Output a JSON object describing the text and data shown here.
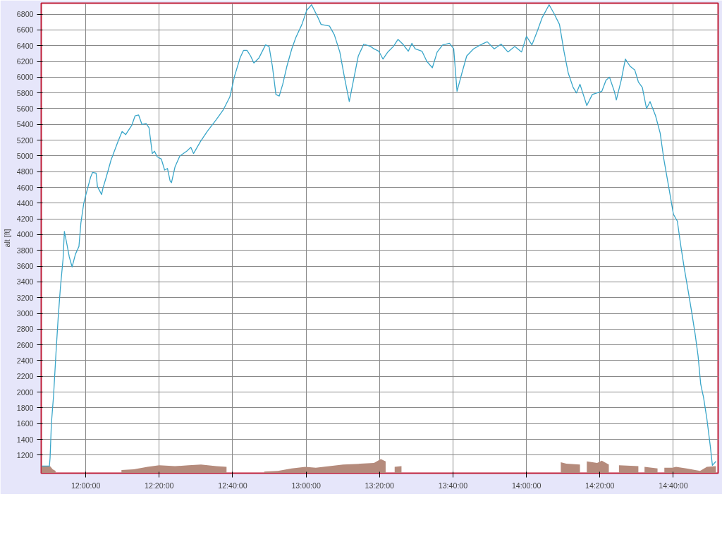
{
  "chart_data": {
    "type": "line",
    "ylabel": "alt [ft]",
    "xlim": [
      11.798,
      14.87
    ],
    "ylim": [
      970,
      6940
    ],
    "xticks": [
      {
        "value": 12,
        "label": "12:00:00"
      },
      {
        "value": 12.3333,
        "label": "12:20:00"
      },
      {
        "value": 12.6667,
        "label": "12:40:00"
      },
      {
        "value": 13,
        "label": "13:00:00"
      },
      {
        "value": 13.3333,
        "label": "13:20:00"
      },
      {
        "value": 13.6667,
        "label": "13:40:00"
      },
      {
        "value": 14,
        "label": "14:00:00"
      },
      {
        "value": 14.3333,
        "label": "14:20:00"
      },
      {
        "value": 14.6667,
        "label": "14:40:00"
      }
    ],
    "yticks": [
      1200,
      1400,
      1600,
      1800,
      2000,
      2200,
      2400,
      2600,
      2800,
      3000,
      3200,
      3400,
      3600,
      3800,
      4000,
      4200,
      4400,
      4600,
      4800,
      5000,
      5200,
      5400,
      5600,
      5800,
      6000,
      6200,
      6400,
      6600,
      6800
    ],
    "grid": true,
    "series": [
      {
        "type": "area",
        "color": "#b58b7c",
        "x": [
          11.798,
          11.838,
          11.85,
          11.863,
          11.875,
          11.969,
          12.156,
          12.162,
          12.218,
          12.28,
          12.333,
          12.405,
          12.467,
          12.523,
          12.592,
          12.639,
          12.642,
          12.763,
          12.81,
          12.872,
          12.935,
          12.997,
          13.044,
          13.106,
          13.168,
          13.246,
          13.308,
          13.339,
          13.361,
          13.371,
          13.396,
          13.402,
          13.433,
          13.439,
          14.15,
          14.156,
          14.181,
          14.243,
          14.252,
          14.268,
          14.274,
          14.321,
          14.342,
          14.374,
          14.383,
          14.414,
          14.42,
          14.508,
          14.526,
          14.536,
          14.595,
          14.601,
          14.623,
          14.626,
          14.663,
          14.679,
          14.726,
          14.788,
          14.819,
          14.86
        ],
        "values": [
          1060,
          1060,
          1020,
          1000,
          null,
          null,
          null,
          1010,
          1020,
          1050,
          1070,
          1060,
          1070,
          1080,
          1060,
          1050,
          null,
          null,
          990,
          1000,
          1030,
          1050,
          1040,
          1060,
          1080,
          1090,
          1100,
          1150,
          1120,
          null,
          null,
          1050,
          1060,
          null,
          null,
          1110,
          1090,
          1080,
          null,
          null,
          1120,
          1100,
          1130,
          1080,
          null,
          null,
          1070,
          1060,
          null,
          1050,
          1030,
          null,
          null,
          1040,
          1040,
          1050,
          1030,
          1000,
          1050,
          1060
        ]
      },
      {
        "color": "#3aa6c9",
        "x": [
          11.798,
          11.835,
          11.838,
          11.844,
          11.854,
          11.866,
          11.875,
          11.885,
          11.897,
          11.903,
          11.913,
          11.925,
          11.938,
          11.953,
          11.969,
          11.978,
          11.991,
          12.0,
          12.022,
          12.031,
          12.047,
          12.053,
          12.072,
          12.078,
          12.093,
          12.115,
          12.146,
          12.165,
          12.181,
          12.209,
          12.224,
          12.24,
          12.255,
          12.274,
          12.287,
          12.302,
          12.312,
          12.324,
          12.343,
          12.358,
          12.371,
          12.383,
          12.389,
          12.405,
          12.427,
          12.458,
          12.477,
          12.489,
          12.52,
          12.551,
          12.592,
          12.623,
          12.654,
          12.676,
          12.701,
          12.716,
          12.732,
          12.748,
          12.763,
          12.785,
          12.816,
          12.832,
          12.847,
          12.863,
          12.878,
          12.894,
          12.913,
          12.935,
          12.953,
          12.981,
          13.003,
          13.025,
          13.05,
          13.068,
          13.106,
          13.128,
          13.153,
          13.174,
          13.196,
          13.215,
          13.237,
          13.262,
          13.293,
          13.308,
          13.33,
          13.349,
          13.371,
          13.396,
          13.417,
          13.439,
          13.464,
          13.48,
          13.495,
          13.526,
          13.548,
          13.573,
          13.595,
          13.62,
          13.651,
          13.67,
          13.685,
          13.707,
          13.729,
          13.76,
          13.791,
          13.822,
          13.854,
          13.885,
          13.916,
          13.947,
          13.978,
          14.0,
          14.025,
          14.05,
          14.072,
          14.103,
          14.125,
          14.15,
          14.171,
          14.19,
          14.212,
          14.227,
          14.243,
          14.258,
          14.274,
          14.299,
          14.321,
          14.342,
          14.361,
          14.377,
          14.399,
          14.408,
          14.43,
          14.449,
          14.47,
          14.492,
          14.508,
          14.526,
          14.545,
          14.561,
          14.586,
          14.607,
          14.623,
          14.648,
          14.667,
          14.685,
          14.701,
          14.716,
          14.735,
          14.751,
          14.766,
          14.779,
          14.791,
          14.804,
          14.819,
          14.835,
          14.844,
          14.86
        ],
        "values": [
          1060,
          1060,
          1160,
          1600,
          1960,
          2550,
          2950,
          3330,
          3690,
          4040,
          3900,
          3720,
          3590,
          3750,
          3850,
          4150,
          4400,
          4500,
          4730,
          4790,
          4780,
          4610,
          4510,
          4590,
          4730,
          4950,
          5180,
          5310,
          5270,
          5390,
          5510,
          5520,
          5400,
          5410,
          5360,
          5030,
          5060,
          4990,
          4960,
          4820,
          4840,
          4680,
          4660,
          4860,
          5000,
          5060,
          5110,
          5030,
          5180,
          5310,
          5460,
          5580,
          5750,
          6020,
          6250,
          6340,
          6340,
          6270,
          6180,
          6240,
          6410,
          6390,
          6140,
          5780,
          5760,
          5910,
          6140,
          6360,
          6500,
          6670,
          6850,
          6920,
          6780,
          6670,
          6650,
          6540,
          6320,
          6000,
          5690,
          5960,
          6270,
          6420,
          6390,
          6360,
          6330,
          6230,
          6320,
          6390,
          6480,
          6420,
          6330,
          6430,
          6360,
          6330,
          6200,
          6120,
          6320,
          6410,
          6430,
          6360,
          5820,
          6050,
          6270,
          6360,
          6410,
          6450,
          6360,
          6420,
          6320,
          6390,
          6320,
          6520,
          6410,
          6590,
          6760,
          6920,
          6810,
          6670,
          6320,
          6050,
          5870,
          5800,
          5910,
          5780,
          5640,
          5780,
          5800,
          5820,
          5960,
          6000,
          5820,
          5710,
          5960,
          6230,
          6140,
          6090,
          5940,
          5870,
          5600,
          5690,
          5510,
          5290,
          4970,
          4570,
          4260,
          4170,
          3850,
          3580,
          3270,
          3000,
          2730,
          2460,
          2100,
          1930,
          1660,
          1300,
          1070,
          1120
        ]
      }
    ]
  }
}
